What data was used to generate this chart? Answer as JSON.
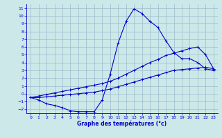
{
  "title": "Graphe des températures (°c)",
  "bg_color": "#cce8e8",
  "grid_color": "#99bbcc",
  "line_color": "#0000cc",
  "xlim": [
    -0.5,
    23.5
  ],
  "ylim": [
    -2.5,
    11.5
  ],
  "xticks": [
    0,
    1,
    2,
    3,
    4,
    5,
    6,
    7,
    8,
    9,
    10,
    11,
    12,
    13,
    14,
    15,
    16,
    17,
    18,
    19,
    20,
    21,
    22,
    23
  ],
  "yticks": [
    -2,
    -1,
    0,
    1,
    2,
    3,
    4,
    5,
    6,
    7,
    8,
    9,
    10,
    11
  ],
  "line1_x": [
    0,
    1,
    2,
    3,
    4,
    5,
    6,
    7,
    8,
    9,
    10,
    11,
    12,
    13,
    14,
    15,
    16,
    17,
    18,
    19,
    20,
    21,
    22,
    23
  ],
  "line1_y": [
    -0.5,
    -0.8,
    -1.3,
    -1.5,
    -1.8,
    -2.2,
    -2.3,
    -2.3,
    -2.3,
    -0.8,
    2.5,
    6.5,
    9.3,
    10.9,
    10.3,
    9.3,
    8.5,
    6.8,
    5.3,
    4.5,
    4.5,
    4.0,
    3.2,
    3.0
  ],
  "line2_x": [
    0,
    1,
    2,
    3,
    4,
    5,
    6,
    7,
    8,
    9,
    10,
    11,
    12,
    13,
    14,
    15,
    16,
    17,
    18,
    19,
    20,
    21,
    22,
    23
  ],
  "line2_y": [
    -0.5,
    -0.5,
    -0.4,
    -0.3,
    -0.2,
    -0.1,
    0.0,
    0.1,
    0.2,
    0.4,
    0.6,
    0.9,
    1.2,
    1.5,
    1.8,
    2.1,
    2.4,
    2.7,
    3.0,
    3.1,
    3.2,
    3.3,
    3.4,
    3.2
  ],
  "line3_x": [
    0,
    1,
    2,
    3,
    4,
    5,
    6,
    7,
    8,
    9,
    10,
    11,
    12,
    13,
    14,
    15,
    16,
    17,
    18,
    19,
    20,
    21,
    22,
    23
  ],
  "line3_y": [
    -0.5,
    -0.3,
    -0.1,
    0.1,
    0.3,
    0.5,
    0.7,
    0.9,
    1.1,
    1.3,
    1.6,
    2.0,
    2.5,
    3.0,
    3.5,
    4.0,
    4.4,
    4.9,
    5.2,
    5.5,
    5.8,
    6.0,
    5.0,
    3.2
  ]
}
